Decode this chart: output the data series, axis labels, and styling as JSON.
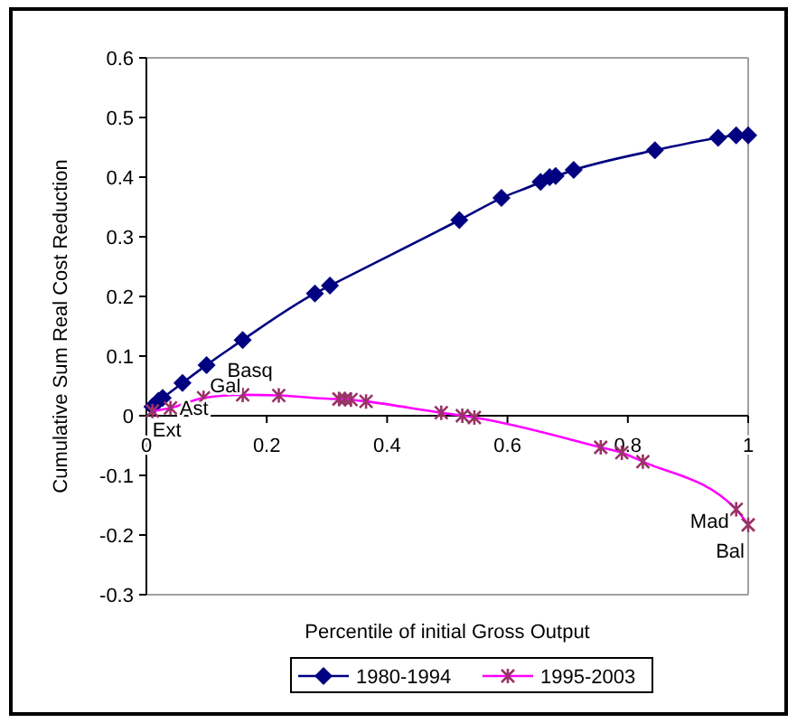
{
  "chart_data": {
    "type": "line",
    "xlabel": "Percentile of initial Gross Output",
    "ylabel": "Cumulative Sum Real Cost Reduction",
    "xlim": [
      0,
      1
    ],
    "xticks": [
      0,
      0.2,
      0.4,
      0.6,
      0.8,
      1
    ],
    "ylim": [
      -0.3,
      0.6
    ],
    "yticks": [
      -0.3,
      -0.2,
      -0.1,
      0,
      0.1,
      0.2,
      0.3,
      0.4,
      0.5,
      0.6
    ],
    "grid": false,
    "legend": "bottom",
    "series": [
      {
        "name": "1980-1994",
        "color": "#000080",
        "marker": "diamond",
        "x": [
          0.01,
          0.02,
          0.027,
          0.06,
          0.1,
          0.16,
          0.28,
          0.305,
          0.52,
          0.59,
          0.655,
          0.67,
          0.68,
          0.71,
          0.845,
          0.95,
          0.98,
          1.0
        ],
        "values": [
          0.015,
          0.025,
          0.03,
          0.055,
          0.085,
          0.127,
          0.205,
          0.218,
          0.328,
          0.365,
          0.392,
          0.4,
          0.402,
          0.412,
          0.445,
          0.466,
          0.47,
          0.47
        ]
      },
      {
        "name": "1995-2003",
        "color": "#ff00ff",
        "marker": "cross",
        "x": [
          0.01,
          0.04,
          0.095,
          0.16,
          0.22,
          0.32,
          0.33,
          0.34,
          0.365,
          0.49,
          0.525,
          0.545,
          0.755,
          0.79,
          0.825,
          0.98,
          1.0
        ],
        "values": [
          0.008,
          0.013,
          0.03,
          0.035,
          0.034,
          0.028,
          0.028,
          0.027,
          0.024,
          0.005,
          0,
          -0.003,
          -0.053,
          -0.062,
          -0.077,
          -0.157,
          -0.183
        ]
      }
    ],
    "annotations": [
      {
        "text": "Ext",
        "x": 0.01,
        "y": 0.008
      },
      {
        "text": "Ast",
        "x": 0.04,
        "y": 0.013
      },
      {
        "text": "Gal",
        "x": 0.095,
        "y": 0.03
      },
      {
        "text": "Basq",
        "x": 0.16,
        "y": 0.035
      },
      {
        "text": "Mad",
        "x": 0.98,
        "y": -0.157
      },
      {
        "text": "Bal",
        "x": 1.0,
        "y": -0.183
      }
    ]
  }
}
